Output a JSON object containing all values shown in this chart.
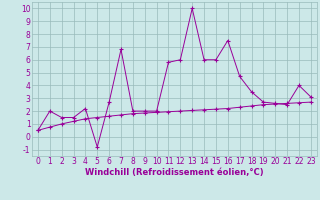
{
  "xlabel": "Windchill (Refroidissement éolien,°C)",
  "x_values": [
    0,
    1,
    2,
    3,
    4,
    5,
    6,
    7,
    8,
    9,
    10,
    11,
    12,
    13,
    14,
    15,
    16,
    17,
    18,
    19,
    20,
    21,
    22,
    23
  ],
  "line1_y": [
    0.5,
    2.0,
    1.5,
    1.5,
    2.2,
    -0.8,
    2.7,
    6.8,
    2.0,
    2.0,
    2.0,
    5.8,
    6.0,
    10.0,
    6.0,
    6.0,
    7.5,
    4.7,
    3.5,
    2.7,
    2.6,
    2.5,
    4.0,
    3.1
  ],
  "line2_y": [
    0.5,
    0.75,
    1.0,
    1.2,
    1.4,
    1.5,
    1.6,
    1.7,
    1.8,
    1.85,
    1.9,
    1.95,
    2.0,
    2.05,
    2.1,
    2.15,
    2.2,
    2.3,
    2.4,
    2.5,
    2.55,
    2.6,
    2.65,
    2.7
  ],
  "line_color": "#990099",
  "bg_color": "#cce8e8",
  "grid_color": "#99bbbb",
  "ylim": [
    -1.5,
    10.5
  ],
  "yticks": [
    -1,
    0,
    1,
    2,
    3,
    4,
    5,
    6,
    7,
    8,
    9,
    10
  ],
  "xticks": [
    0,
    1,
    2,
    3,
    4,
    5,
    6,
    7,
    8,
    9,
    10,
    11,
    12,
    13,
    14,
    15,
    16,
    17,
    18,
    19,
    20,
    21,
    22,
    23
  ],
  "tick_fontsize": 5.5,
  "xlabel_fontsize": 6.0,
  "marker": "+"
}
